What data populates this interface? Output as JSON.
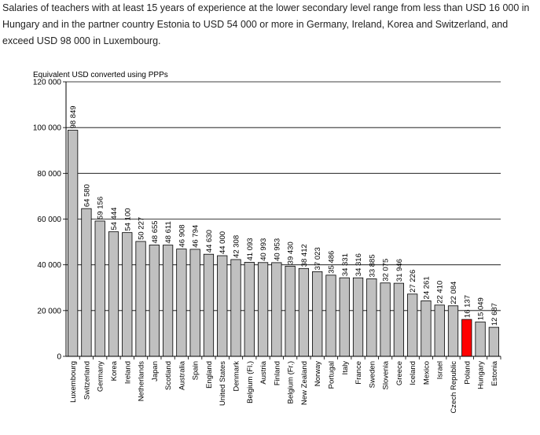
{
  "intro_text": "Salaries of teachers with at least 15 years of experience at the lower secondary level range from less than USD 16 000 in Hungary and in the partner country Estonia to USD 54 000 or more in Germany, Ireland, Korea and Switzerland, and exceed USD 98 000 in Luxembourg.",
  "chart_data": {
    "type": "bar",
    "title": "",
    "xlabel": "",
    "ylabel": "Equivalent USD converted using PPPs",
    "ylim": [
      0,
      120000
    ],
    "yticks": [
      0,
      20000,
      40000,
      60000,
      80000,
      100000,
      120000
    ],
    "ytick_labels": [
      "0",
      "20 000",
      "40 000",
      "60 000",
      "80 000",
      "100 000",
      "120 000"
    ],
    "grid": true,
    "categories": [
      "Luxembourg",
      "Switzerland",
      "Germany",
      "Korea",
      "Ireland",
      "Netherlands",
      "Japan",
      "Scotland",
      "Australia",
      "Spain",
      "England",
      "United States",
      "Denmark",
      "Belgium (Fl.)",
      "Austria",
      "Finland",
      "Belgium (Fr.)",
      "New Zealand",
      "Norway",
      "Portugal",
      "Italy",
      "France",
      "Sweden",
      "Slovenia",
      "Greece",
      "Iceland",
      "Mexico",
      "Israel",
      "Czech Republic",
      "Poland",
      "Hungary",
      "Estonia"
    ],
    "values": [
      98849,
      64580,
      59156,
      54444,
      54100,
      50227,
      48655,
      48611,
      46908,
      46794,
      44630,
      44000,
      42308,
      41093,
      40993,
      40953,
      39430,
      38412,
      37023,
      35486,
      34331,
      34316,
      33885,
      32075,
      31946,
      27226,
      24261,
      22410,
      22084,
      16137,
      15049,
      12687
    ],
    "value_labels": [
      "98 849",
      "64 580",
      "59 156",
      "54 444",
      "54 100",
      "50 227",
      "48 655",
      "48 611",
      "46 908",
      "46 794",
      "44 630",
      "44 000",
      "42 308",
      "41 093",
      "40 993",
      "40 953",
      "39 430",
      "38 412",
      "37 023",
      "35 486",
      "34 331",
      "34 316",
      "33 885",
      "32 075",
      "31 946",
      "27 226",
      "24 261",
      "22 410",
      "22 084",
      "16 137",
      "15 049",
      "12 687"
    ],
    "highlight": "Poland",
    "colors": {
      "bar": "#c0c0c0",
      "highlight": "#ff0000",
      "outline": "#000000",
      "grid": "#000000"
    }
  }
}
